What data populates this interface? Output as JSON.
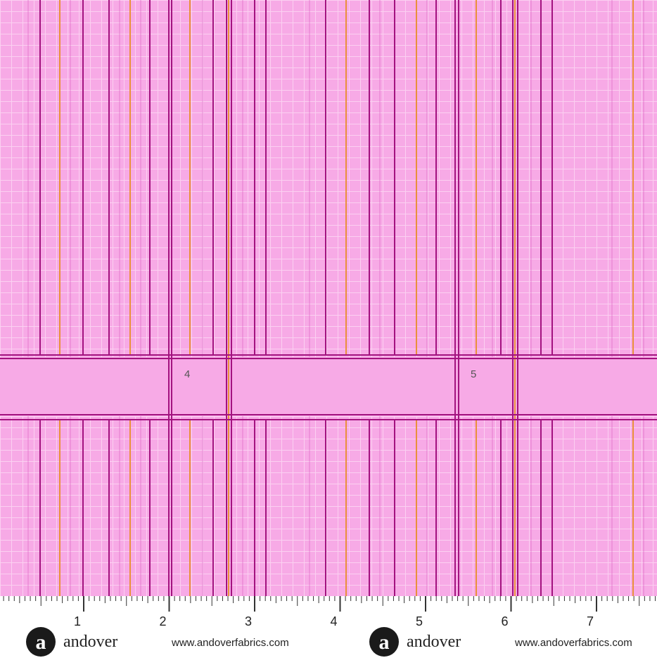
{
  "fabric": {
    "labels": [
      "4",
      "5"
    ]
  },
  "ruler": {
    "marks": [
      "1",
      "2",
      "3",
      "4",
      "5",
      "6",
      "7"
    ]
  },
  "brand": [
    {
      "logo": "a",
      "name": "andover",
      "url": "www.andoverfabrics.com"
    },
    {
      "logo": "a",
      "name": "andover",
      "url": "www.andoverfabrics.com"
    }
  ]
}
